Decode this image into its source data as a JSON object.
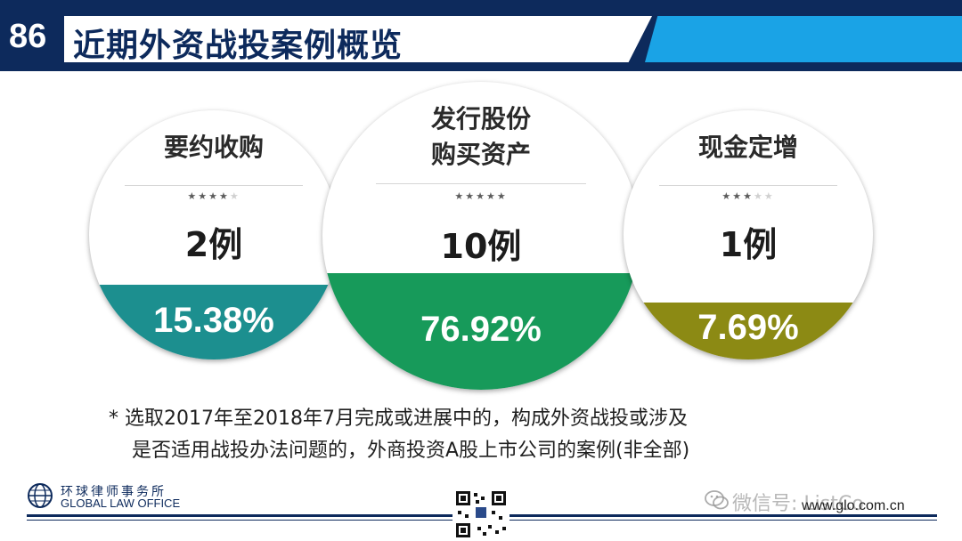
{
  "header": {
    "page_number": "86",
    "title": "近期外资战投案例概览"
  },
  "cases": [
    {
      "label_lines": [
        "要约收购"
      ],
      "stars_filled": 4,
      "stars_total": 5,
      "count": "2例",
      "percent": "15.38%",
      "color": "#1c8f8f"
    },
    {
      "label_lines": [
        "发行股份",
        "购买资产"
      ],
      "stars_filled": 5,
      "stars_total": 5,
      "count": "10例",
      "percent": "76.92%",
      "color": "#179a5a"
    },
    {
      "label_lines": [
        "现金定增"
      ],
      "stars_filled": 3,
      "stars_total": 5,
      "count": "1例",
      "percent": "7.69%",
      "color": "#8c8a14"
    }
  ],
  "note": {
    "line1": "*  选取2017年至2018年7月完成或进展中的，构成外资战投或涉及",
    "line2": "是否适用战投办法问题的，外商投资A股上市公司的案例(非全部)"
  },
  "footer": {
    "logo_cn": "环球律师事务所",
    "logo_en": "GLOBAL LAW OFFICE",
    "website": "www.glo.com.cn",
    "watermark": "微信号: ListCo"
  },
  "colors": {
    "navy": "#0d2a5c",
    "header_blue": "#1aa3e6"
  }
}
